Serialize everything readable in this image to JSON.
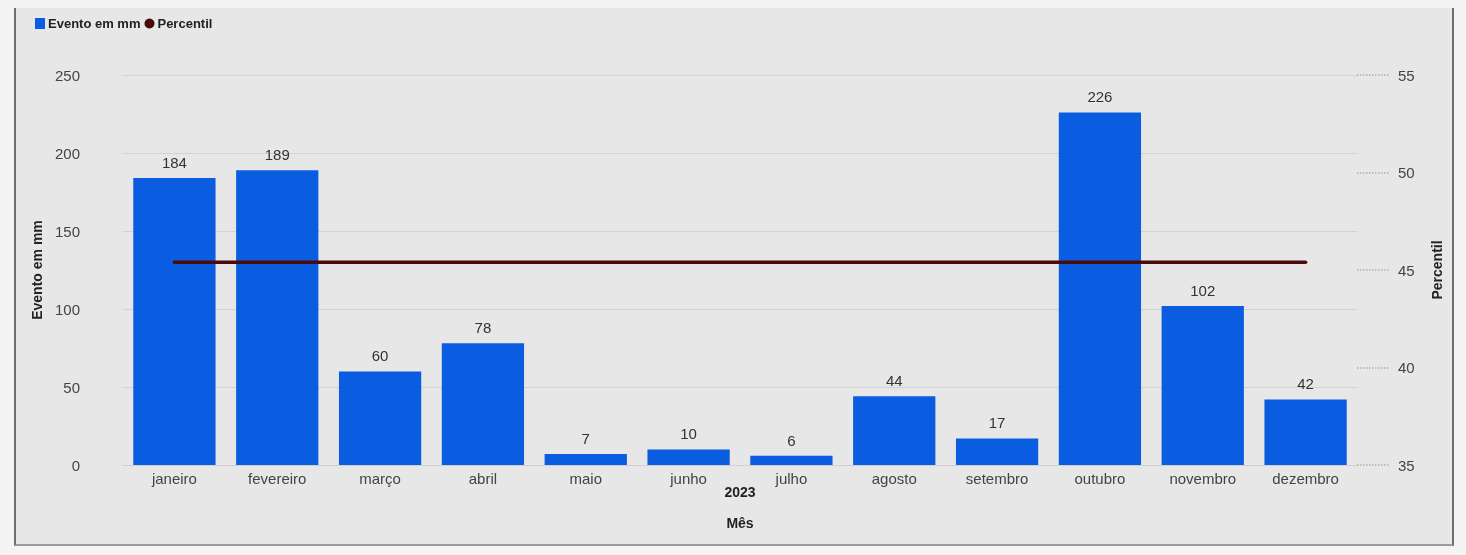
{
  "chart_data": {
    "type": "bar",
    "xlabel": "Mês",
    "ylabel": "Evento em mm",
    "y2label": "Percentil",
    "annotations": [
      "2023"
    ],
    "categories": [
      "janeiro",
      "fevereiro",
      "março",
      "abril",
      "maio",
      "junho",
      "julho",
      "agosto",
      "setembro",
      "outubro",
      "novembro",
      "dezembro"
    ],
    "series": [
      {
        "name": "Evento em mm",
        "color": "#0a5ce0",
        "values": [
          184,
          189,
          60,
          78,
          7,
          10,
          6,
          44,
          17,
          226,
          102,
          42
        ],
        "value_labels": [
          "184",
          "189",
          "60",
          "78",
          "7",
          "10",
          "6",
          "44",
          "17",
          "226",
          "102",
          "42"
        ]
      },
      {
        "name": "Percentil",
        "type": "line",
        "axis": "y2",
        "color": "#4a0a0a",
        "values": [
          45.4,
          45.4,
          45.4,
          45.4,
          45.4,
          45.4,
          45.4,
          45.4,
          45.4,
          45.4,
          45.4,
          45.4
        ]
      }
    ],
    "ylim": [
      0,
      250
    ],
    "yticks": [
      0,
      50,
      100,
      150,
      200,
      250
    ],
    "y2lim": [
      35,
      55
    ],
    "y2ticks": [
      35,
      40,
      45,
      50,
      55
    ],
    "grid": "y",
    "legend": "top left",
    "marker": "none",
    "line_style": "solid"
  }
}
